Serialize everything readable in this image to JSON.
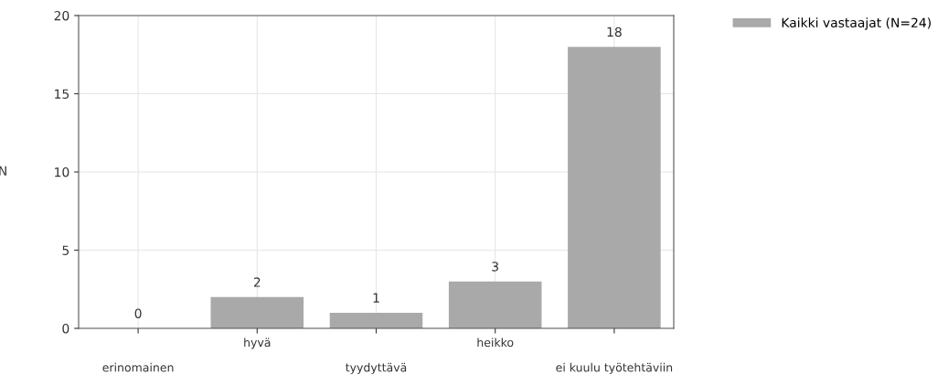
{
  "chart_data": {
    "type": "bar",
    "ylabel": "N",
    "categories": [
      "erinomainen",
      "hyvä",
      "tyydyttävä",
      "heikko",
      "ei kuulu työtehtäviin"
    ],
    "series": [
      {
        "name": "Kaikki vastaajat (N=24)",
        "color": "#a9a9a9",
        "values": [
          0,
          2,
          1,
          3,
          18
        ]
      }
    ],
    "ylim": [
      0,
      20
    ],
    "yticks": [
      0,
      5,
      10,
      15,
      20
    ],
    "grid": true,
    "legend": "top right",
    "data_labels": true
  }
}
